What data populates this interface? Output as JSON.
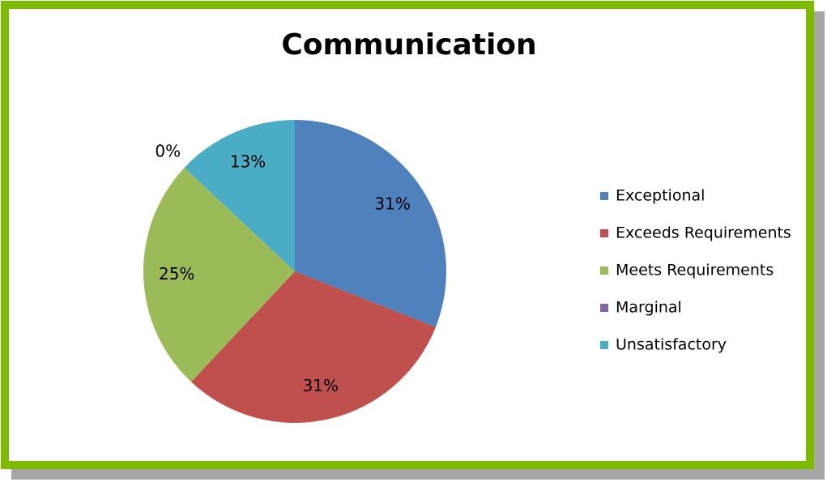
{
  "chart_data": {
    "type": "pie",
    "title": "Communication",
    "categories": [
      "Exceptional",
      "Exceeds Requirements",
      "Meets Requirements",
      "Marginal",
      "Unsatisfactory"
    ],
    "values": [
      31,
      31,
      25,
      0,
      13
    ],
    "value_labels": [
      "31%",
      "31%",
      "25%",
      "0%",
      "13%"
    ],
    "colors": [
      "#4f81bd",
      "#c0504d",
      "#9bbb59",
      "#8064a2",
      "#4bacc6"
    ],
    "legend": "right"
  }
}
